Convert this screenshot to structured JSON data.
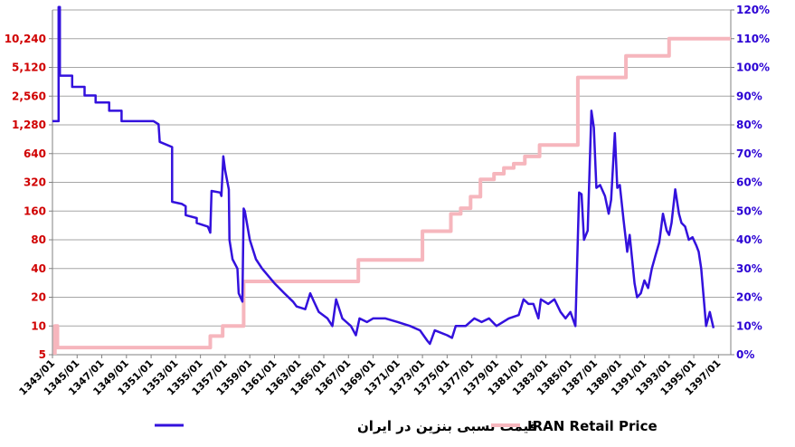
{
  "chart_data": {
    "type": "line",
    "title": "",
    "grid": true,
    "legend_position": "bottom",
    "left_axis": {
      "scale": "log2",
      "ticks": [
        "5",
        "10",
        "20",
        "40",
        "80",
        "160",
        "320",
        "640",
        "1,280",
        "2,560",
        "5,120",
        "10,240"
      ],
      "tick_values": [
        5,
        10,
        20,
        40,
        80,
        160,
        320,
        640,
        1280,
        2560,
        5120,
        10240
      ],
      "ylim": [
        5,
        20480
      ],
      "color": "#d00000"
    },
    "right_axis": {
      "ticks": [
        "0%",
        "10%",
        "20%",
        "30%",
        "40%",
        "50%",
        "60%",
        "70%",
        "80%",
        "90%",
        "100%",
        "110%",
        "120%"
      ],
      "ylim": [
        0,
        120
      ],
      "color": "#2a00d4"
    },
    "x_axis": {
      "ticks": [
        "1343/01",
        "1345/01",
        "1347/01",
        "1349/01",
        "1351/01",
        "1353/01",
        "1355/01",
        "1357/01",
        "1359/01",
        "1361/01",
        "1363/01",
        "1365/01",
        "1367/01",
        "1369/01",
        "1371/01",
        "1373/01",
        "1375/01",
        "1377/01",
        "1379/01",
        "1381/01",
        "1383/01",
        "1385/01",
        "1387/01",
        "1389/01",
        "1391/01",
        "1393/01",
        "1395/01",
        "1397/01"
      ],
      "xlim": [
        1343.0,
        1398.0
      ]
    },
    "series": [
      {
        "name": "قیمت نسبی بنزین در ایران",
        "axis": "left",
        "color": "#3311dd",
        "points": [
          [
            1343.0,
            1400
          ],
          [
            1343.5,
            1400
          ],
          [
            1343.5,
            22000
          ],
          [
            1343.6,
            22000
          ],
          [
            1343.6,
            4200
          ],
          [
            1344.6,
            4200
          ],
          [
            1344.6,
            3200
          ],
          [
            1345.6,
            3200
          ],
          [
            1345.6,
            2600
          ],
          [
            1346.5,
            2600
          ],
          [
            1346.5,
            2200
          ],
          [
            1347.6,
            2200
          ],
          [
            1347.6,
            1800
          ],
          [
            1348.6,
            1800
          ],
          [
            1348.6,
            1400
          ],
          [
            1351.2,
            1400
          ],
          [
            1351.6,
            1300
          ],
          [
            1351.7,
            850
          ],
          [
            1352.7,
            750
          ],
          [
            1352.7,
            200
          ],
          [
            1353.5,
            190
          ],
          [
            1353.8,
            180
          ],
          [
            1353.8,
            145
          ],
          [
            1354.7,
            135
          ],
          [
            1354.7,
            120
          ],
          [
            1355.6,
            110
          ],
          [
            1355.8,
            95
          ],
          [
            1355.9,
            260
          ],
          [
            1356.6,
            250
          ],
          [
            1356.7,
            230
          ],
          [
            1356.85,
            600
          ],
          [
            1357.0,
            430
          ],
          [
            1357.3,
            270
          ],
          [
            1357.35,
            80
          ],
          [
            1357.6,
            50
          ],
          [
            1358.0,
            40
          ],
          [
            1358.1,
            22
          ],
          [
            1358.4,
            18
          ],
          [
            1358.5,
            170
          ],
          [
            1358.6,
            160
          ],
          [
            1359.0,
            80
          ],
          [
            1359.5,
            50
          ],
          [
            1360.0,
            40
          ],
          [
            1361.0,
            28
          ],
          [
            1361.8,
            22
          ],
          [
            1362.5,
            18
          ],
          [
            1362.8,
            16
          ],
          [
            1363.5,
            15
          ],
          [
            1363.9,
            22
          ],
          [
            1364.2,
            18
          ],
          [
            1364.6,
            14
          ],
          [
            1365.3,
            12
          ],
          [
            1365.7,
            10
          ],
          [
            1366.0,
            19
          ],
          [
            1366.5,
            12
          ],
          [
            1367.2,
            10
          ],
          [
            1367.6,
            8
          ],
          [
            1367.9,
            12
          ],
          [
            1368.5,
            11
          ],
          [
            1369.0,
            12
          ],
          [
            1370.0,
            12
          ],
          [
            1371.0,
            11
          ],
          [
            1372.0,
            10
          ],
          [
            1372.8,
            9
          ],
          [
            1373.4,
            7
          ],
          [
            1373.6,
            6.5
          ],
          [
            1374.0,
            9
          ],
          [
            1375.0,
            8
          ],
          [
            1375.4,
            7.5
          ],
          [
            1375.7,
            10
          ],
          [
            1376.5,
            10
          ],
          [
            1377.2,
            12
          ],
          [
            1377.8,
            11
          ],
          [
            1378.4,
            12
          ],
          [
            1379.0,
            10
          ],
          [
            1380.0,
            12
          ],
          [
            1380.8,
            13
          ],
          [
            1381.2,
            19
          ],
          [
            1381.6,
            17
          ],
          [
            1382.0,
            17
          ],
          [
            1382.4,
            12
          ],
          [
            1382.6,
            19
          ],
          [
            1383.2,
            17
          ],
          [
            1383.7,
            19
          ],
          [
            1384.2,
            14
          ],
          [
            1384.6,
            12
          ],
          [
            1385.0,
            14
          ],
          [
            1385.4,
            10
          ],
          [
            1385.7,
            250
          ],
          [
            1385.9,
            240
          ],
          [
            1386.1,
            80
          ],
          [
            1386.4,
            100
          ],
          [
            1386.7,
            1800
          ],
          [
            1386.9,
            1200
          ],
          [
            1387.1,
            280
          ],
          [
            1387.4,
            300
          ],
          [
            1387.8,
            230
          ],
          [
            1388.1,
            150
          ],
          [
            1388.3,
            210
          ],
          [
            1388.6,
            1050
          ],
          [
            1388.8,
            280
          ],
          [
            1389.0,
            300
          ],
          [
            1389.3,
            130
          ],
          [
            1389.6,
            60
          ],
          [
            1389.8,
            90
          ],
          [
            1390.2,
            28
          ],
          [
            1390.4,
            20
          ],
          [
            1390.7,
            22
          ],
          [
            1391.0,
            30
          ],
          [
            1391.3,
            25
          ],
          [
            1391.6,
            40
          ],
          [
            1391.9,
            55
          ],
          [
            1392.2,
            75
          ],
          [
            1392.5,
            150
          ],
          [
            1392.8,
            100
          ],
          [
            1393.0,
            90
          ],
          [
            1393.2,
            120
          ],
          [
            1393.5,
            270
          ],
          [
            1393.8,
            150
          ],
          [
            1394.0,
            120
          ],
          [
            1394.3,
            110
          ],
          [
            1394.6,
            80
          ],
          [
            1394.9,
            85
          ],
          [
            1395.2,
            70
          ],
          [
            1395.4,
            60
          ],
          [
            1395.6,
            40
          ],
          [
            1395.8,
            20
          ],
          [
            1396.0,
            10
          ],
          [
            1396.3,
            14
          ],
          [
            1396.6,
            9.5
          ]
        ]
      },
      {
        "name": "IRAN Retail Price",
        "axis": "right",
        "color": "#f6b6bd",
        "points": [
          [
            1343.2,
            0
          ],
          [
            1343.2,
            10
          ],
          [
            1343.4,
            10
          ],
          [
            1343.4,
            2.5
          ],
          [
            1355.8,
            2.5
          ],
          [
            1355.8,
            6.5
          ],
          [
            1356.8,
            6.5
          ],
          [
            1356.8,
            10
          ],
          [
            1358.5,
            10
          ],
          [
            1358.5,
            25.5
          ],
          [
            1367.8,
            25.5
          ],
          [
            1367.8,
            33
          ],
          [
            1373.0,
            33
          ],
          [
            1373.0,
            43
          ],
          [
            1375.3,
            43
          ],
          [
            1375.3,
            49
          ],
          [
            1376.1,
            49
          ],
          [
            1376.1,
            51
          ],
          [
            1376.9,
            51
          ],
          [
            1376.9,
            55
          ],
          [
            1377.7,
            55
          ],
          [
            1377.7,
            61
          ],
          [
            1378.8,
            61
          ],
          [
            1378.8,
            63
          ],
          [
            1379.6,
            63
          ],
          [
            1379.6,
            65
          ],
          [
            1380.4,
            65
          ],
          [
            1380.4,
            66.5
          ],
          [
            1381.3,
            66.5
          ],
          [
            1381.3,
            69
          ],
          [
            1382.5,
            69
          ],
          [
            1382.5,
            73
          ],
          [
            1385.6,
            73
          ],
          [
            1385.6,
            96.5
          ],
          [
            1389.5,
            96.5
          ],
          [
            1389.5,
            104
          ],
          [
            1393.0,
            104
          ],
          [
            1393.0,
            110
          ],
          [
            1398.0,
            110
          ]
        ]
      }
    ]
  }
}
